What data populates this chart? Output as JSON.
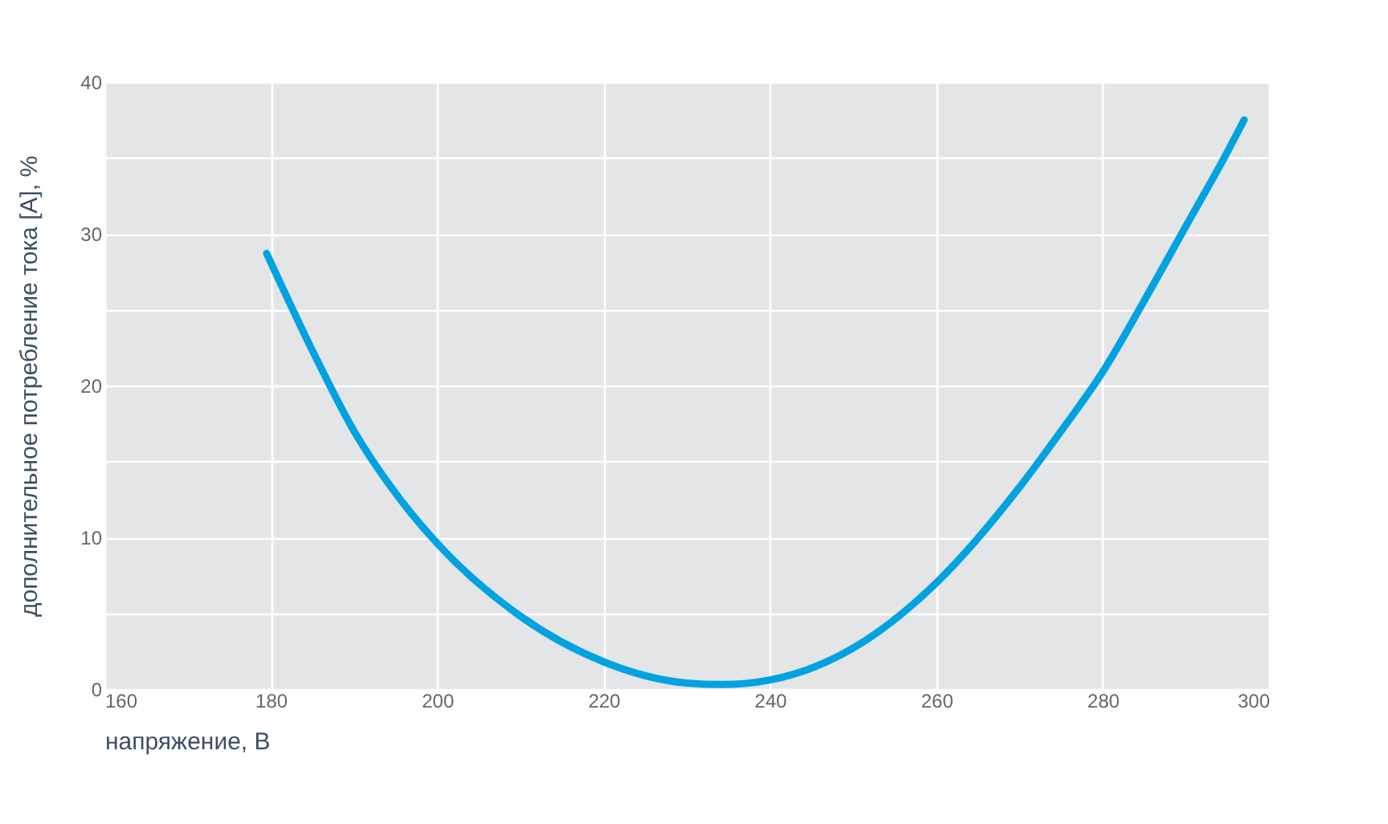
{
  "chart_data": {
    "type": "line",
    "xlabel": "напряжение, В",
    "ylabel": "дополнительное потребление тока [A], %",
    "x": [
      179.5,
      185,
      190,
      195,
      200,
      210,
      220,
      230,
      234.3,
      240,
      250,
      260,
      270,
      275,
      280,
      285,
      290,
      295,
      297
    ],
    "series": [
      {
        "color": "#00a3e0",
        "values": [
          28.7,
          22.3,
          17.0,
          12.9,
          9.6,
          4.8,
          1.8,
          0.4,
          0.3,
          0.6,
          2.7,
          7.0,
          13.3,
          17.0,
          20.9,
          25.6,
          30.5,
          35.4,
          37.5
        ]
      }
    ],
    "xlim": [
      160,
      300
    ],
    "xticks": [
      160,
      180,
      200,
      220,
      240,
      260,
      280,
      300
    ],
    "ylim": [
      0,
      40
    ],
    "yticks": [
      0,
      {
        "value": 5,
        "label": null
      },
      10,
      {
        "value": 15,
        "label": null
      },
      20,
      {
        "value": 25,
        "label": null
      },
      30,
      {
        "value": 35,
        "label": null
      },
      40
    ],
    "grid": true,
    "legend": false,
    "marker": "none",
    "line_style": "solid"
  }
}
